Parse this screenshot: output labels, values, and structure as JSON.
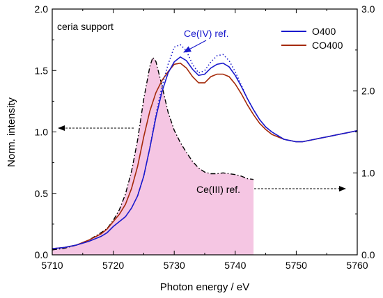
{
  "chart_data": {
    "type": "line",
    "xlabel": "Photon energy / eV",
    "ylabel": "Norm. intensity",
    "xlim": [
      5710,
      5760
    ],
    "ylim": [
      0.0,
      2.0
    ],
    "y2lim": [
      0.0,
      3.0
    ],
    "x_ticks": [
      "5710",
      "5720",
      "5730",
      "5740",
      "5750",
      "5760"
    ],
    "y_ticks": [
      "0.0",
      "0.5",
      "1.0",
      "1.5",
      "2.0"
    ],
    "y2_ticks": [
      "0.0",
      "1.0",
      "2.0",
      "3.0"
    ],
    "grid": false,
    "legend_position": "top-right",
    "colors": {
      "O400": "#1a1acd",
      "CO400": "#a52a0a",
      "CeIV_ref": "#1a1acd",
      "CeIII_ref": "#000000",
      "CeIII_fill": "#f5c6e3"
    },
    "series": [
      {
        "name": "O400",
        "axis": "left",
        "style": "solid",
        "x": [
          5710,
          5712,
          5714,
          5716,
          5718,
          5719,
          5720,
          5721,
          5722,
          5723,
          5724,
          5725,
          5726,
          5727,
          5728,
          5729,
          5730,
          5731,
          5732,
          5733,
          5734,
          5735,
          5736,
          5737,
          5738,
          5739,
          5740,
          5741,
          5742,
          5743,
          5744,
          5745,
          5746,
          5747,
          5748,
          5749,
          5750,
          5751,
          5752,
          5753,
          5754,
          5755,
          5756,
          5757,
          5758,
          5759,
          5760
        ],
        "y": [
          0.05,
          0.06,
          0.08,
          0.11,
          0.15,
          0.18,
          0.23,
          0.27,
          0.31,
          0.38,
          0.48,
          0.64,
          0.87,
          1.12,
          1.33,
          1.48,
          1.57,
          1.61,
          1.58,
          1.51,
          1.46,
          1.47,
          1.52,
          1.55,
          1.56,
          1.53,
          1.46,
          1.37,
          1.27,
          1.18,
          1.1,
          1.04,
          1.0,
          0.97,
          0.94,
          0.93,
          0.92,
          0.92,
          0.93,
          0.94,
          0.95,
          0.96,
          0.97,
          0.98,
          0.99,
          1.0,
          1.01
        ]
      },
      {
        "name": "CO400",
        "axis": "left",
        "style": "solid",
        "x": [
          5710,
          5712,
          5714,
          5716,
          5718,
          5719,
          5720,
          5721,
          5722,
          5723,
          5724,
          5725,
          5726,
          5727,
          5728,
          5729,
          5730,
          5731,
          5732,
          5733,
          5734,
          5735,
          5736,
          5737,
          5738,
          5739,
          5740,
          5741,
          5742,
          5743,
          5744,
          5745,
          5746,
          5747,
          5748,
          5749,
          5750,
          5751,
          5752,
          5753,
          5754,
          5755,
          5756,
          5757,
          5758,
          5759,
          5760
        ],
        "y": [
          0.05,
          0.06,
          0.08,
          0.12,
          0.17,
          0.21,
          0.27,
          0.33,
          0.41,
          0.54,
          0.72,
          0.96,
          1.17,
          1.32,
          1.42,
          1.49,
          1.55,
          1.56,
          1.52,
          1.45,
          1.4,
          1.4,
          1.45,
          1.47,
          1.47,
          1.45,
          1.39,
          1.31,
          1.22,
          1.14,
          1.07,
          1.02,
          0.98,
          0.96,
          0.94,
          0.93,
          0.92,
          0.92,
          0.93,
          0.94,
          0.95,
          0.96,
          0.97,
          0.98,
          0.99,
          1.0,
          1.01
        ]
      },
      {
        "name": "Ce(IV) ref.",
        "axis": "left",
        "style": "dotted",
        "x": [
          5724,
          5725,
          5726,
          5727,
          5728,
          5729,
          5730,
          5731,
          5732,
          5733,
          5734,
          5735,
          5736,
          5737,
          5738,
          5739,
          5740,
          5741,
          5742,
          5743,
          5744,
          5745,
          5746,
          5747,
          5748,
          5749,
          5750
        ],
        "y": [
          0.48,
          0.64,
          0.87,
          1.14,
          1.37,
          1.55,
          1.69,
          1.71,
          1.66,
          1.55,
          1.48,
          1.5,
          1.57,
          1.62,
          1.63,
          1.58,
          1.49,
          1.38,
          1.27,
          1.18,
          1.1,
          1.04,
          1.0,
          0.97,
          0.94,
          0.93,
          0.92
        ]
      },
      {
        "name": "Ce(III) ref.",
        "axis": "right",
        "style": "dash-dot",
        "filled": true,
        "x": [
          5710,
          5712,
          5714,
          5716,
          5718,
          5719,
          5720,
          5721,
          5722,
          5723,
          5724,
          5725,
          5726,
          5726.5,
          5727,
          5728,
          5729,
          5730,
          5731,
          5732,
          5733,
          5734,
          5735,
          5736,
          5737,
          5738,
          5739,
          5740,
          5741,
          5742,
          5743
        ],
        "y": [
          0.06,
          0.08,
          0.12,
          0.18,
          0.27,
          0.32,
          0.42,
          0.55,
          0.74,
          1.02,
          1.4,
          1.9,
          2.3,
          2.41,
          2.36,
          2.06,
          1.74,
          1.52,
          1.37,
          1.25,
          1.14,
          1.06,
          1.01,
          0.99,
          0.99,
          1.0,
          0.99,
          0.98,
          0.96,
          0.93,
          0.92
        ]
      }
    ],
    "annotations": {
      "sample": "ceria support",
      "ceiv_label": "Ce(IV) ref.",
      "ceiii_label": "Ce(III) ref."
    }
  }
}
